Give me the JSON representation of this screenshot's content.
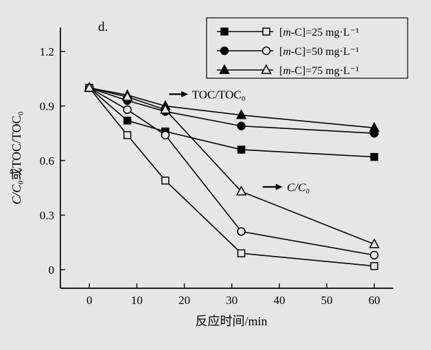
{
  "panel_label": "d.",
  "chart_data": {
    "type": "line",
    "title": "",
    "xlabel": "反应时间/min",
    "ylabel": "C/C₀或TOC/TOC₀",
    "ylabel_parts": {
      "left": "C/C₀",
      "middle": "或",
      "right": "TOC/TOC₀"
    },
    "x_ticks": [
      0,
      10,
      20,
      30,
      40,
      50,
      60
    ],
    "y_ticks": [
      0,
      0.3,
      0.6,
      0.9,
      1.2
    ],
    "xlim": [
      -6.1,
      64
    ],
    "ylim": [
      -0.102,
      1.332
    ],
    "grid": false,
    "legend_position": "top-right",
    "x": [
      0,
      8,
      16,
      32,
      60
    ],
    "series": [
      {
        "id": "toc-25",
        "name": "TOC/TOC0 at [m-C]=25 mg·L⁻¹",
        "marker": "square",
        "fill": "filled",
        "values": [
          1.0,
          0.82,
          0.76,
          0.66,
          0.62
        ]
      },
      {
        "id": "toc-50",
        "name": "TOC/TOC0 at [m-C]=50 mg·L⁻¹",
        "marker": "circle",
        "fill": "filled",
        "values": [
          1.0,
          0.93,
          0.87,
          0.79,
          0.75
        ]
      },
      {
        "id": "toc-75",
        "name": "TOC/TOC0 at [m-C]=75 mg·L⁻¹",
        "marker": "triangle",
        "fill": "filled",
        "values": [
          1.0,
          0.96,
          0.9,
          0.85,
          0.78
        ]
      },
      {
        "id": "c-25",
        "name": "C/C0 at [m-C]=25 mg·L⁻¹",
        "marker": "square",
        "fill": "open",
        "values": [
          1.0,
          0.74,
          0.49,
          0.09,
          0.02
        ]
      },
      {
        "id": "c-50",
        "name": "C/C0 at [m-C]=50 mg·L⁻¹",
        "marker": "circle",
        "fill": "open",
        "values": [
          1.0,
          0.88,
          0.74,
          0.21,
          0.08
        ]
      },
      {
        "id": "c-75",
        "name": "C/C0 at [m-C]=75 mg·L⁻¹",
        "marker": "triangle",
        "fill": "open",
        "values": [
          1.0,
          0.95,
          0.88,
          0.43,
          0.14
        ]
      }
    ],
    "legend": [
      {
        "marker": "square",
        "pre": "[",
        "var": "m",
        "post": "-C]=25 mg·L⁻¹"
      },
      {
        "marker": "circle",
        "pre": "[",
        "var": "m",
        "post": "-C]=50 mg·L⁻¹"
      },
      {
        "marker": "triangle",
        "pre": "[",
        "var": "m",
        "post": "-C]=75 mg·L⁻¹"
      }
    ],
    "annotations": [
      {
        "label": "TOC/TOC₀",
        "italic": false,
        "arrow_from_x": 16.8,
        "arrow_to_x": 20.8,
        "y": 0.965,
        "label_x": 21.6
      },
      {
        "label": "C/C₀",
        "italic": true,
        "arrow_from_x": 36.5,
        "arrow_to_x": 40.7,
        "y": 0.455,
        "label_x": 41.6
      }
    ],
    "colors": {
      "line": "#000000",
      "background": "#e6e6e6"
    }
  }
}
